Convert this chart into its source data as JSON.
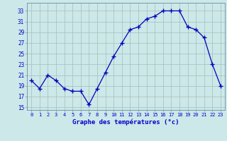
{
  "x": [
    0,
    1,
    2,
    3,
    4,
    5,
    6,
    7,
    8,
    9,
    10,
    11,
    12,
    13,
    14,
    15,
    16,
    17,
    18,
    19,
    20,
    21,
    22,
    23
  ],
  "y": [
    20,
    18.5,
    21,
    20,
    18.5,
    18,
    18,
    15.5,
    18.5,
    21.5,
    24.5,
    27,
    29.5,
    30,
    31.5,
    32,
    33,
    33,
    33,
    30,
    29.5,
    28,
    23,
    19
  ],
  "line_color": "#0000bb",
  "marker": "+",
  "marker_size": 4,
  "bg_color": "#cce8e8",
  "grid_color": "#aabbbb",
  "xlabel": "Graphe des températures (°c)",
  "xlabel_color": "#0000cc",
  "tick_color": "#0000cc",
  "ylabel_ticks": [
    15,
    17,
    19,
    21,
    23,
    25,
    27,
    29,
    31,
    33
  ],
  "xtick_labels": [
    "0",
    "1",
    "2",
    "3",
    "4",
    "5",
    "6",
    "7",
    "8",
    "9",
    "10",
    "11",
    "12",
    "13",
    "14",
    "15",
    "16",
    "17",
    "18",
    "19",
    "20",
    "21",
    "22",
    "23"
  ],
  "ylim": [
    14.5,
    34.5
  ],
  "xlim": [
    -0.5,
    23.5
  ],
  "figsize": [
    3.2,
    2.0
  ],
  "dpi": 100
}
